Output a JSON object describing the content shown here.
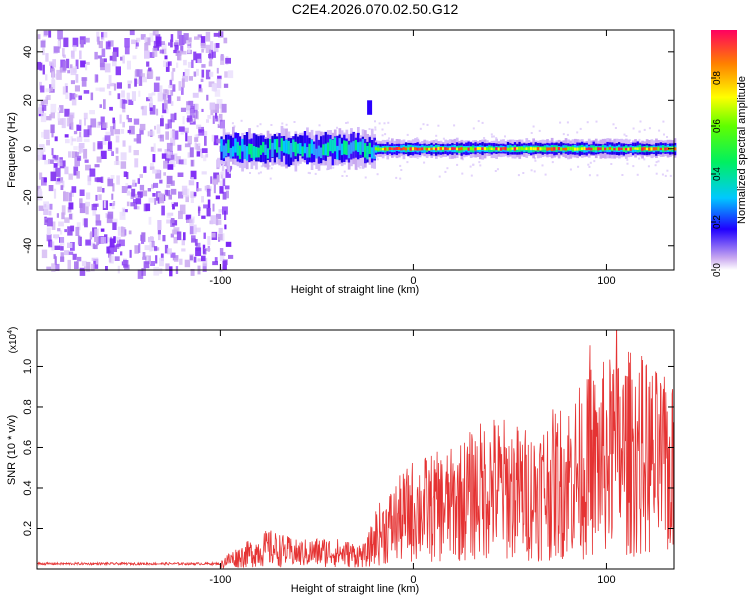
{
  "title": "C2E4.2026.070.02.50.G12",
  "colors": {
    "snr_line": "#e53333",
    "axis": "#000000"
  },
  "chart_data": [
    {
      "type": "heatmap",
      "xlabel": "Height of straight line (km)",
      "ylabel": "Frequency (Hz)",
      "xlim": [
        -195,
        135
      ],
      "ylim": [
        -50,
        49
      ],
      "xticks": [
        -100,
        0,
        100
      ],
      "yticks": [
        -40,
        -20,
        0,
        20,
        40
      ],
      "description_regions": [
        {
          "x_range": [
            -195,
            -100
          ],
          "kind": "broadband noise"
        },
        {
          "x_range": [
            -100,
            -20
          ],
          "kind": "noisy signal band",
          "center_hz": 0,
          "half_width_hz": 6
        },
        {
          "x_range": [
            -20,
            135
          ],
          "kind": "strong narrow signal band",
          "center_hz": 0,
          "half_width_hz": 3
        }
      ],
      "colorbar": {
        "label": "Normalized spectral amplitude",
        "range": [
          0,
          1
        ],
        "ticks": [
          "0.0",
          "0.2",
          "0.4",
          "0.6",
          "0.8"
        ]
      }
    },
    {
      "type": "line",
      "xlabel": "Height of straight line (km)",
      "ylabel": "SNR (10 * v/v)",
      "scale_label": "(x10",
      "scale_exp": "4",
      "xlim": [
        -195,
        135
      ],
      "ylim": [
        0,
        1.18
      ],
      "xticks": [
        -100,
        0,
        100
      ],
      "yticks": [
        "0.2",
        "0.4",
        "0.6",
        "0.8",
        "1.0"
      ],
      "envelope": [
        {
          "x": -195,
          "y": 0.03
        },
        {
          "x": -100,
          "y": 0.03
        },
        {
          "x": -98,
          "y": 0.08
        },
        {
          "x": -75,
          "y": 0.22
        },
        {
          "x": -60,
          "y": 0.16
        },
        {
          "x": -45,
          "y": 0.18
        },
        {
          "x": -25,
          "y": 0.14
        },
        {
          "x": -20,
          "y": 0.3
        },
        {
          "x": 0,
          "y": 0.55
        },
        {
          "x": 20,
          "y": 0.6
        },
        {
          "x": 40,
          "y": 0.78
        },
        {
          "x": 60,
          "y": 0.7
        },
        {
          "x": 80,
          "y": 0.85
        },
        {
          "x": 100,
          "y": 1.05
        },
        {
          "x": 115,
          "y": 1.1
        },
        {
          "x": 135,
          "y": 0.9
        }
      ]
    }
  ]
}
